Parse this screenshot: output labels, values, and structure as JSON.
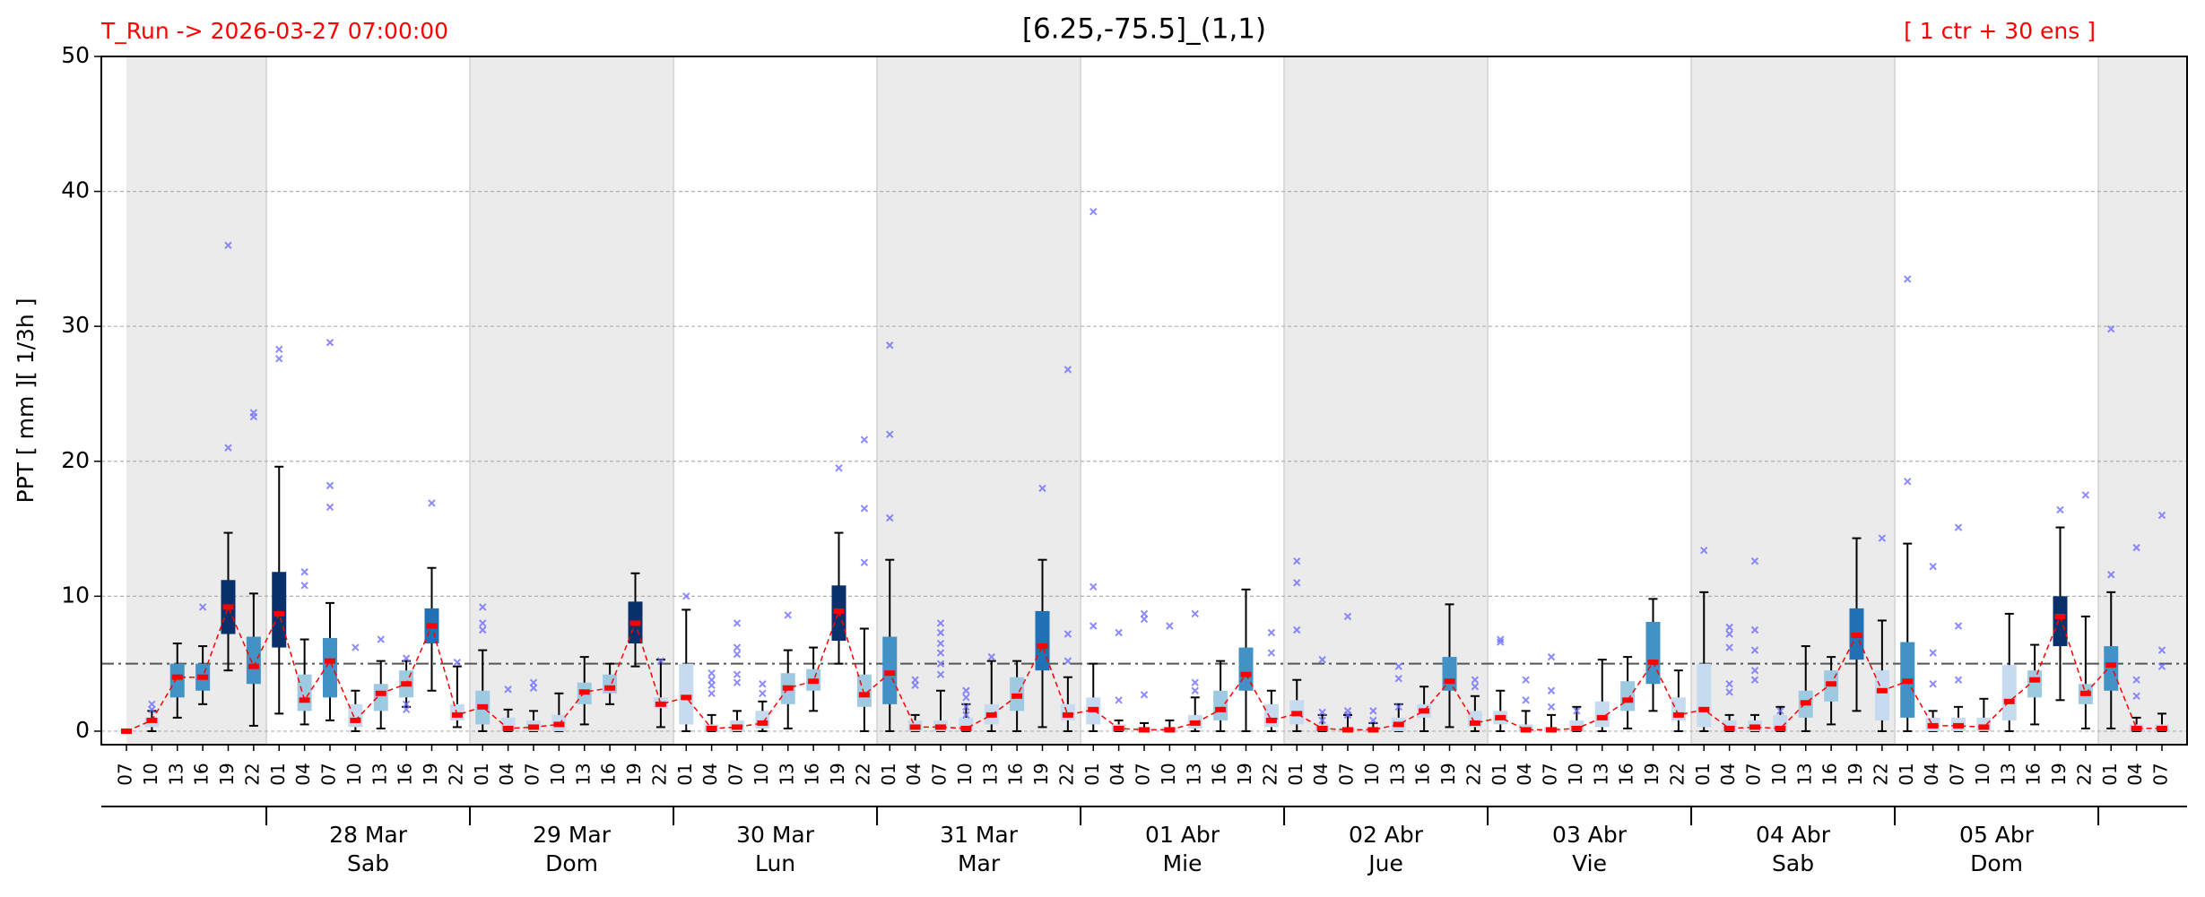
{
  "chart_data": {
    "type": "box",
    "title": "[6.25,-75.5]_(1,1)",
    "run_label": "T_Run -> 2026-03-27  07:00:00",
    "ensemble_label": "[ 1 ctr + 30 ens ]",
    "ylabel": "PPT  [ mm ][ 1/3h ]",
    "ylim": [
      -1,
      50
    ],
    "yticks": [
      0,
      10,
      20,
      30,
      40,
      50
    ],
    "grid": true,
    "reference_line": 5,
    "mean_color": "#ff0000",
    "outlier_color": "#6f6fff",
    "categories": [
      "07",
      "10",
      "13",
      "16",
      "19",
      "22",
      "01",
      "04",
      "07",
      "10",
      "13",
      "16",
      "19",
      "22",
      "01",
      "04",
      "07",
      "10",
      "13",
      "16",
      "19",
      "22",
      "01",
      "04",
      "07",
      "10",
      "13",
      "16",
      "19",
      "22",
      "01",
      "04",
      "07",
      "10",
      "13",
      "16",
      "19",
      "22",
      "01",
      "04",
      "07",
      "10",
      "13",
      "16",
      "19",
      "22",
      "01",
      "04",
      "07",
      "10",
      "13",
      "16",
      "19",
      "22",
      "01",
      "04",
      "07",
      "10",
      "13",
      "16",
      "19",
      "22",
      "01",
      "04",
      "07",
      "10",
      "13",
      "16",
      "19",
      "22",
      "01",
      "04",
      "07",
      "10",
      "13",
      "16",
      "19",
      "22",
      "01",
      "04",
      "07"
    ],
    "days": [
      {
        "date": "28 Mar",
        "weekday": "Sab"
      },
      {
        "date": "29 Mar",
        "weekday": "Dom"
      },
      {
        "date": "30 Mar",
        "weekday": "Lun"
      },
      {
        "date": "31 Mar",
        "weekday": "Mar"
      },
      {
        "date": "01 Abr",
        "weekday": "Mie"
      },
      {
        "date": "02 Abr",
        "weekday": "Jue"
      },
      {
        "date": "03 Abr",
        "weekday": "Vie"
      },
      {
        "date": "04 Abr",
        "weekday": "Sab"
      },
      {
        "date": "05 Abr",
        "weekday": "Dom"
      }
    ],
    "mean": [
      0,
      0.8,
      4,
      4,
      9.2,
      4.8,
      8.7,
      2.3,
      5.2,
      0.8,
      2.8,
      3.5,
      7.8,
      1.2,
      1.8,
      0.2,
      0.3,
      0.5,
      2.9,
      3.2,
      8,
      2,
      2.5,
      0.2,
      0.3,
      0.6,
      3.2,
      3.7,
      8.9,
      2.7,
      4.3,
      0.3,
      0.3,
      0.2,
      1.2,
      2.6,
      6.3,
      1.2,
      1.6,
      0.2,
      0.1,
      0.1,
      0.6,
      1.6,
      4.2,
      0.8,
      1.3,
      0.2,
      0.1,
      0.1,
      0.5,
      1.5,
      3.7,
      0.6,
      1,
      0.1,
      0.1,
      0.2,
      1,
      2.3,
      5.1,
      1.2,
      1.6,
      0.2,
      0.3,
      0.2,
      2.1,
      3.5,
      7.1,
      3,
      3.7,
      0.4,
      0.4,
      0.3,
      2.2,
      3.8,
      8.5,
      2.8,
      4.9,
      0.2,
      0.2
    ],
    "q1": [
      0,
      0.3,
      2.5,
      3,
      7.2,
      3.5,
      6.2,
      1.5,
      2.5,
      0.3,
      1.5,
      2.5,
      6.5,
      0.8,
      0.5,
      0,
      0,
      0,
      2,
      2.8,
      6.5,
      1.7,
      0.5,
      0,
      0,
      0.2,
      2,
      3,
      6.7,
      1.8,
      2,
      0,
      0,
      0,
      0.5,
      1.5,
      4.5,
      0.8,
      0.5,
      0,
      0,
      0,
      0.2,
      0.8,
      3,
      0.3,
      0.5,
      0,
      0,
      0,
      0,
      1,
      3,
      0.3,
      0.5,
      0,
      0,
      0,
      0.3,
      1.5,
      3.5,
      0.8,
      0.3,
      0,
      0,
      0,
      1,
      2.2,
      5.3,
      0.8,
      1,
      0,
      0,
      0,
      0.8,
      2.5,
      6.3,
      2,
      3,
      0,
      0
    ],
    "q3": [
      0,
      1,
      5,
      5,
      11.2,
      7,
      11.8,
      4.2,
      6.9,
      2,
      3.5,
      4.5,
      9.1,
      2,
      3,
      1,
      0.8,
      1.2,
      3.6,
      4.2,
      9.6,
      2.5,
      5,
      0.5,
      0.8,
      1.5,
      4.3,
      4.6,
      10.8,
      4.2,
      7,
      0.8,
      0.8,
      1,
      2,
      4,
      8.9,
      2,
      2.5,
      0.5,
      0.3,
      0.3,
      1.2,
      3,
      6.2,
      2,
      2.3,
      0.5,
      0.3,
      0.3,
      1,
      2,
      5.5,
      1.5,
      1.5,
      0.5,
      0.3,
      0.8,
      2.2,
      3.7,
      8.1,
      2.5,
      5,
      0.8,
      0.8,
      1.2,
      3,
      4.5,
      9.1,
      4.5,
      6.6,
      1,
      1,
      1,
      4.9,
      4.5,
      10,
      3.5,
      6.3,
      0.5,
      0.5
    ],
    "whislo": [
      0,
      0,
      1,
      2,
      4.5,
      0.4,
      1.3,
      0.5,
      0.8,
      0,
      0.2,
      1.8,
      3,
      0.3,
      0,
      0,
      0,
      0,
      0.5,
      2,
      4.8,
      0.3,
      0,
      0,
      0,
      0,
      0.2,
      1.5,
      5,
      0,
      0,
      0,
      0,
      0,
      0,
      0,
      0.3,
      0,
      0,
      0,
      0,
      0,
      0,
      0,
      0,
      0,
      0,
      0,
      0,
      0,
      0,
      0,
      0.3,
      0,
      0,
      0,
      0,
      0,
      0,
      0.2,
      1.5,
      0,
      0,
      0,
      0,
      0,
      0,
      0.5,
      1.5,
      0,
      0,
      0,
      0,
      0,
      0,
      0.5,
      2.3,
      0.2,
      0.2,
      0,
      0
    ],
    "whishi": [
      0,
      1.5,
      6.5,
      6.3,
      14.7,
      10.2,
      19.6,
      6.8,
      9.5,
      3,
      5.2,
      5.2,
      12.1,
      4.8,
      6,
      1.6,
      1.5,
      2.8,
      5.5,
      5,
      11.7,
      5.3,
      9,
      1.2,
      1.5,
      2.2,
      6,
      6.2,
      14.7,
      7.6,
      12.7,
      1.2,
      3,
      2,
      5.2,
      5.2,
      12.7,
      4,
      5,
      0.8,
      0.6,
      0.8,
      2.5,
      5.2,
      10.5,
      3,
      3.8,
      1.2,
      1.2,
      0.6,
      2,
      3.3,
      9.4,
      2.6,
      3,
      1.5,
      1.2,
      1.8,
      5.3,
      5.5,
      9.8,
      4.5,
      10.3,
      1.2,
      1.2,
      1.8,
      6.3,
      5.5,
      14.3,
      8.2,
      13.9,
      1.5,
      1.8,
      2.4,
      8.7,
      6.4,
      15.1,
      8.5,
      10.3,
      1,
      1.3
    ],
    "outliers": [
      [],
      [
        2,
        1.6
      ],
      [],
      [
        9.2
      ],
      [
        36,
        21
      ],
      [
        23.6,
        23.3
      ],
      [
        28.3,
        27.6
      ],
      [
        11.8,
        10.8
      ],
      [
        28.8,
        18.2,
        16.6
      ],
      [
        6.2
      ],
      [
        6.8
      ],
      [
        5.4,
        2,
        1.6
      ],
      [
        16.9
      ],
      [
        5.1
      ],
      [
        9.2,
        8,
        7.5
      ],
      [
        3.1
      ],
      [
        3.6,
        3.2
      ],
      [],
      [],
      [],
      [],
      [
        5.2
      ],
      [
        10
      ],
      [
        4.3,
        3.8,
        3.4,
        2.8
      ],
      [
        8,
        6.2,
        5.7,
        4.2,
        3.6
      ],
      [
        3.5,
        2.8
      ],
      [
        8.6
      ],
      [],
      [
        19.5
      ],
      [
        21.6,
        16.5,
        12.5
      ],
      [
        28.6,
        22,
        15.8
      ],
      [
        3.8,
        3.4
      ],
      [
        8,
        7.3,
        6.5,
        5.8,
        5,
        4.2
      ],
      [
        3,
        2.5,
        1.8,
        1.2
      ],
      [
        5.5
      ],
      [],
      [
        18
      ],
      [
        26.8,
        7.2,
        5.2
      ],
      [
        38.5,
        10.7,
        7.8
      ],
      [
        7.3,
        2.3
      ],
      [
        8.7,
        8.3,
        2.7
      ],
      [
        7.8
      ],
      [
        8.7,
        3.6,
        3
      ],
      [],
      [],
      [
        7.3,
        5.8
      ],
      [
        12.6,
        11,
        7.5
      ],
      [
        5.3,
        1.4,
        0.8
      ],
      [
        8.5,
        1.5,
        1.2
      ],
      [
        1.5,
        0.8
      ],
      [
        4.8,
        3.9,
        1.8
      ],
      [],
      [],
      [
        3.8,
        3.3
      ],
      [
        6.8,
        6.6
      ],
      [
        3.8,
        2.3
      ],
      [
        5.5,
        3,
        1.8
      ],
      [
        1.5
      ],
      [],
      [],
      [],
      [],
      [
        13.4
      ],
      [
        7.7,
        7.2,
        6.2,
        3.5,
        2.9
      ],
      [
        12.6,
        7.5,
        6,
        4.5,
        3.8
      ],
      [
        1.5
      ],
      [],
      [],
      [],
      [
        14.3
      ],
      [
        33.5,
        18.5
      ],
      [
        12.2,
        5.8,
        3.5
      ],
      [
        15.1,
        7.8,
        3.8
      ],
      [],
      [],
      [],
      [
        16.4
      ],
      [
        17.5
      ],
      [
        29.8,
        11.6
      ],
      [
        13.6,
        3.8,
        2.6
      ],
      [
        16,
        6,
        4.8
      ]
    ],
    "box_colors": [
      "#c6dbef",
      "#c6dbef",
      "#4292c6",
      "#4292c6",
      "#08306b",
      "#4292c6",
      "#08306b",
      "#9ecae1",
      "#4292c6",
      "#c6dbef",
      "#9ecae1",
      "#9ecae1",
      "#2171b5",
      "#c6dbef",
      "#9ecae1",
      "#c6dbef",
      "#c6dbef",
      "#c6dbef",
      "#9ecae1",
      "#9ecae1",
      "#08306b",
      "#c6dbef",
      "#c6dbef",
      "#c6dbef",
      "#c6dbef",
      "#c6dbef",
      "#9ecae1",
      "#9ecae1",
      "#08306b",
      "#9ecae1",
      "#4292c6",
      "#c6dbef",
      "#c6dbef",
      "#c6dbef",
      "#c6dbef",
      "#9ecae1",
      "#2171b5",
      "#c6dbef",
      "#c6dbef",
      "#c6dbef",
      "#c6dbef",
      "#c6dbef",
      "#c6dbef",
      "#9ecae1",
      "#4292c6",
      "#c6dbef",
      "#c6dbef",
      "#c6dbef",
      "#c6dbef",
      "#c6dbef",
      "#c6dbef",
      "#c6dbef",
      "#4292c6",
      "#c6dbef",
      "#c6dbef",
      "#c6dbef",
      "#c6dbef",
      "#c6dbef",
      "#c6dbef",
      "#9ecae1",
      "#4292c6",
      "#c6dbef",
      "#c6dbef",
      "#c6dbef",
      "#c6dbef",
      "#c6dbef",
      "#9ecae1",
      "#9ecae1",
      "#2171b5",
      "#c6dbef",
      "#4292c6",
      "#c6dbef",
      "#c6dbef",
      "#c6dbef",
      "#c6dbef",
      "#9ecae1",
      "#08306b",
      "#9ecae1",
      "#4292c6",
      "#c6dbef",
      "#c6dbef"
    ]
  }
}
